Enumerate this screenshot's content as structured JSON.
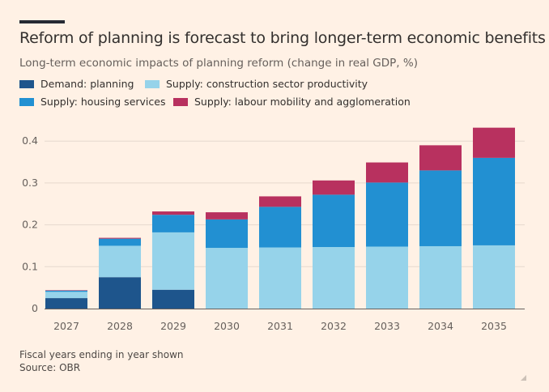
{
  "title": "Reform of planning is forecast to bring longer-term economic benefits",
  "subtitle": "Long-term economic impacts of planning reform (change in real GDP, %)",
  "legend": [
    {
      "label": "Demand: planning",
      "color": "#1E558C"
    },
    {
      "label": "Supply: construction sector productivity",
      "color": "#96D3EA"
    },
    {
      "label": "Supply: housing services",
      "color": "#2290D2"
    },
    {
      "label": "Supply: labour mobility and agglomeration",
      "color": "#B8315F"
    }
  ],
  "footnote": {
    "line1": "Fiscal years ending in year shown",
    "line2": "Source: OBR"
  },
  "colors": {
    "background": "#FFF1E5",
    "gridline": "#E6D9CE",
    "axis": "#66605C",
    "text": "#33302E"
  },
  "chart_data": {
    "type": "bar",
    "stacked": true,
    "categories": [
      "2027",
      "2028",
      "2029",
      "2030",
      "2031",
      "2032",
      "2033",
      "2034",
      "2035"
    ],
    "series": [
      {
        "name": "Demand: planning",
        "color": "#1E558C",
        "values": [
          0.025,
          0.075,
          0.045,
          0,
          0,
          0,
          0,
          0,
          0
        ]
      },
      {
        "name": "Supply: construction sector productivity",
        "color": "#96D3EA",
        "values": [
          0.015,
          0.075,
          0.137,
          0.145,
          0.146,
          0.147,
          0.148,
          0.149,
          0.151
        ]
      },
      {
        "name": "Supply: housing services",
        "color": "#2290D2",
        "values": [
          0.003,
          0.017,
          0.042,
          0.068,
          0.097,
          0.125,
          0.153,
          0.181,
          0.209
        ]
      },
      {
        "name": "Supply: labour mobility and agglomeration",
        "color": "#B8315F",
        "values": [
          0.001,
          0.002,
          0.008,
          0.017,
          0.025,
          0.034,
          0.048,
          0.06,
          0.072
        ]
      }
    ],
    "yticks": [
      0,
      0.1,
      0.2,
      0.3,
      0.4
    ],
    "ytick_labels": [
      "0",
      "0.1",
      "0.2",
      "0.3",
      "0.4"
    ],
    "ylim": [
      0,
      0.45
    ],
    "grid": true,
    "legend_position": "top-left"
  }
}
